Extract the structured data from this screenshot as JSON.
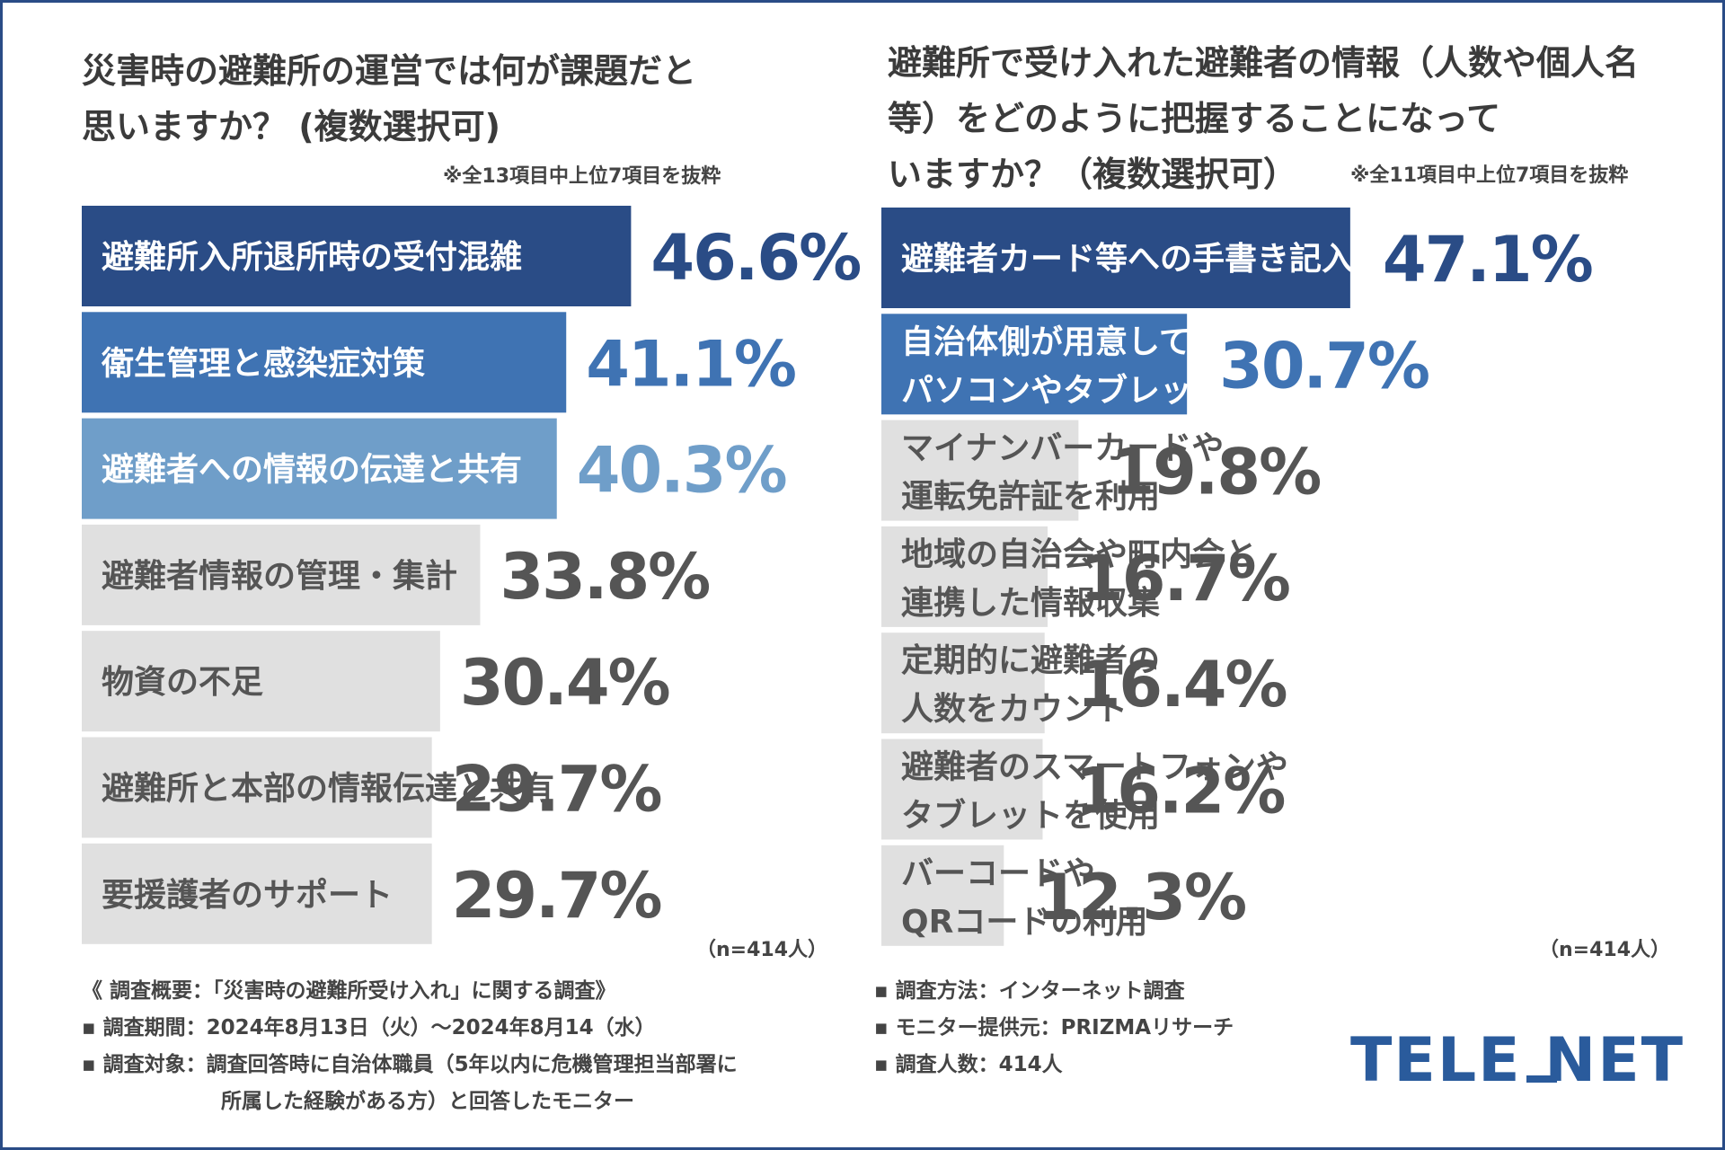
{
  "left": {
    "title_lines": [
      "災害時の避難所の運営では何が課題だと",
      "思いますか？ (複数選択可)"
    ],
    "note": "※全13項目中上位7項目を抜粋",
    "n": "（n=414人）"
  },
  "right": {
    "title_lines": [
      "避難所で受け入れた避難者の情報（人数や個人名",
      "等）をどのように把握することになって",
      "いますか？（複数選択可）"
    ],
    "note": "※全11項目中上位7項目を抜粋",
    "n": "（n=414人）"
  },
  "chart_data": [
    {
      "type": "bar",
      "orientation": "horizontal",
      "categories": [
        "避難所入所退所時の受付混雑",
        "衛生管理と感染症対策",
        "避難者への情報の伝達と共有",
        "避難者情報の管理・集計",
        "物資の不足",
        "避難所と本部の情報伝達と共有",
        "要援護者のサポート"
      ],
      "values": [
        46.6,
        41.1,
        40.3,
        33.8,
        30.4,
        29.7,
        29.7
      ],
      "value_labels": [
        "46.6%",
        "41.1%",
        "40.3%",
        "33.8%",
        "30.4%",
        "29.7%",
        "29.7%"
      ],
      "bar_colors": [
        "#2a4c86",
        "#3f73b3",
        "#6f9ec9",
        "#e0e0e0",
        "#e0e0e0",
        "#e0e0e0",
        "#e0e0e0"
      ],
      "text_colors": [
        "#ffffff",
        "#ffffff",
        "#ffffff",
        "#555555",
        "#555555",
        "#555555",
        "#555555"
      ],
      "value_colors": [
        "#2a4c86",
        "#3f73b3",
        "#6f9ec9",
        "#555555",
        "#555555",
        "#555555",
        "#555555"
      ],
      "xlim": [
        0,
        50
      ]
    },
    {
      "type": "bar",
      "orientation": "horizontal",
      "categories": [
        [
          "避難者カード等への手書き記入"
        ],
        [
          "自治体側が用意している",
          "パソコンやタブレットを使用"
        ],
        [
          "マイナンバーカードや",
          "運転免許証を利用"
        ],
        [
          "地域の自治会や町内会と",
          "連携した情報収集"
        ],
        [
          "定期的に避難者の",
          "人数をカウント"
        ],
        [
          "避難者のスマートフォンや",
          "タブレットを使用"
        ],
        [
          "バーコードや",
          "QRコードの利用"
        ]
      ],
      "values": [
        47.1,
        30.7,
        19.8,
        16.7,
        16.4,
        16.2,
        12.3
      ],
      "value_labels": [
        "47.1%",
        "30.7%",
        "19.8%",
        "16.7%",
        "16.4%",
        "16.2%",
        "12.3%"
      ],
      "bar_colors": [
        "#2a4c86",
        "#3f73b3",
        "#e0e0e0",
        "#e0e0e0",
        "#e0e0e0",
        "#e0e0e0",
        "#e0e0e0"
      ],
      "text_colors": [
        "#ffffff",
        "#ffffff",
        "#555555",
        "#555555",
        "#555555",
        "#555555",
        "#555555"
      ],
      "value_colors": [
        "#2a4c86",
        "#3f73b3",
        "#555555",
        "#555555",
        "#555555",
        "#555555",
        "#555555"
      ],
      "xlim": [
        0,
        50
      ]
    }
  ],
  "footer_left": {
    "line1": "《 調査概要：「災害時の避難所受け入れ」に関する調査》",
    "line2": "▪ 調査期間：2024年8月13日（火）〜2024年8月14（水）",
    "line3": "▪ 調査対象：調査回答時に自治体職員（5年以内に危機管理担当部署に",
    "line4": "所属した経験がある方）と回答したモニター"
  },
  "footer_right": {
    "line1": "▪ 調査方法：インターネット調査",
    "line2": "▪ モニター提供元：PRIZMAリサーチ",
    "line3": "▪ 調査人数：414人"
  },
  "logo": {
    "text": "TELE NET",
    "color": "#2a5b9c"
  }
}
